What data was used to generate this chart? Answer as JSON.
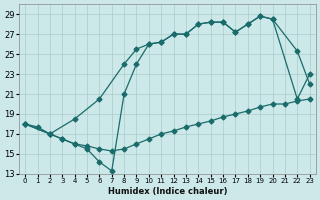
{
  "xlabel": "Humidex (Indice chaleur)",
  "bg_color": "#cce8e8",
  "grid_color": "#aacccc",
  "line_color": "#1a6b6b",
  "ylim": [
    13,
    30
  ],
  "xlim": [
    -0.5,
    23.5
  ],
  "yticks": [
    13,
    15,
    17,
    19,
    21,
    23,
    25,
    27,
    29
  ],
  "xticks": [
    0,
    1,
    2,
    3,
    4,
    5,
    6,
    7,
    8,
    9,
    10,
    11,
    12,
    13,
    14,
    15,
    16,
    17,
    18,
    19,
    20,
    21,
    22,
    23
  ],
  "line1_x": [
    0,
    1,
    2,
    3,
    4,
    5,
    6,
    7,
    8,
    9,
    10,
    11,
    12,
    13,
    14,
    15,
    16,
    17,
    18,
    19,
    20,
    21,
    22,
    23
  ],
  "line1_y": [
    18.0,
    17.7,
    17.0,
    16.5,
    16.0,
    15.8,
    15.5,
    15.3,
    15.5,
    16.0,
    16.5,
    17.0,
    17.3,
    17.7,
    18.0,
    18.3,
    18.7,
    19.0,
    19.3,
    19.7,
    20.0,
    20.0,
    20.3,
    20.5
  ],
  "line2_x": [
    0,
    2,
    4,
    6,
    8,
    9,
    10,
    11,
    12,
    13,
    14,
    15,
    16,
    17,
    18,
    19,
    20,
    22,
    23
  ],
  "line2_y": [
    18.0,
    17.0,
    18.5,
    20.5,
    24.0,
    25.5,
    26.0,
    26.2,
    27.0,
    27.0,
    28.0,
    28.2,
    28.2,
    27.2,
    28.0,
    28.8,
    28.5,
    25.3,
    22.0
  ],
  "line3_x": [
    0,
    2,
    3,
    4,
    5,
    6,
    7,
    8,
    9,
    10,
    11,
    12,
    13,
    14,
    15,
    16,
    17,
    18,
    19,
    20,
    22,
    23
  ],
  "line3_y": [
    18.0,
    17.0,
    16.5,
    16.0,
    15.5,
    14.2,
    13.3,
    21.0,
    24.0,
    26.0,
    26.2,
    27.0,
    27.0,
    28.0,
    28.2,
    28.2,
    27.2,
    28.0,
    28.8,
    28.5,
    20.5,
    23.0
  ]
}
